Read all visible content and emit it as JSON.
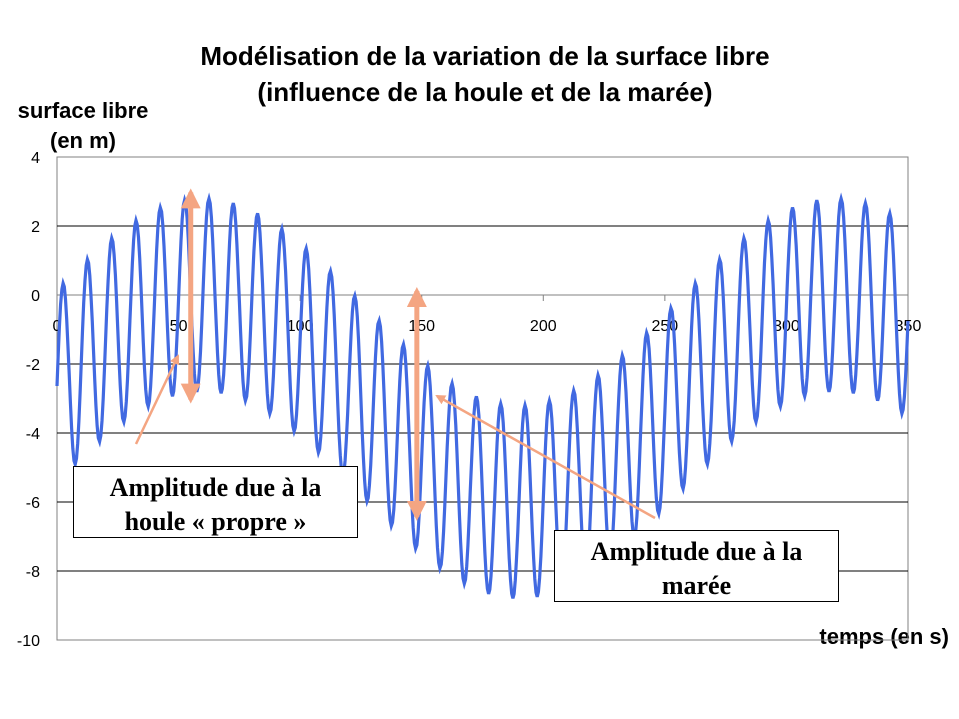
{
  "chart_data": {
    "type": "line",
    "title_line1": "Modélisation de la variation de la surface libre",
    "title_line2": "(influence de la houle et de la marée)",
    "ylabel_line1": "surface libre",
    "ylabel_line2": "(en m)",
    "xlabel": "temps (en s)",
    "xlim": [
      0,
      350
    ],
    "ylim": [
      -10,
      4
    ],
    "x_ticks": [
      0,
      50,
      100,
      150,
      200,
      250,
      300,
      350
    ],
    "y_ticks": [
      4,
      2,
      0,
      -2,
      -4,
      -6,
      -8,
      -10
    ],
    "grid": "horizontal",
    "series": [
      {
        "color": "#4169E1",
        "model": "y = -3 + 3*cos(2*pi*(x-60)/260) + 2.8*sin(2*pi*x/10)",
        "x_step": 0.5
      }
    ]
  },
  "annotations": {
    "houle": {
      "line1": "Amplitude due à la",
      "line2": "houle « propre »"
    },
    "maree": {
      "line1": "Amplitude due à la",
      "line2": "marée"
    },
    "arrow_color": "#F4A582"
  }
}
